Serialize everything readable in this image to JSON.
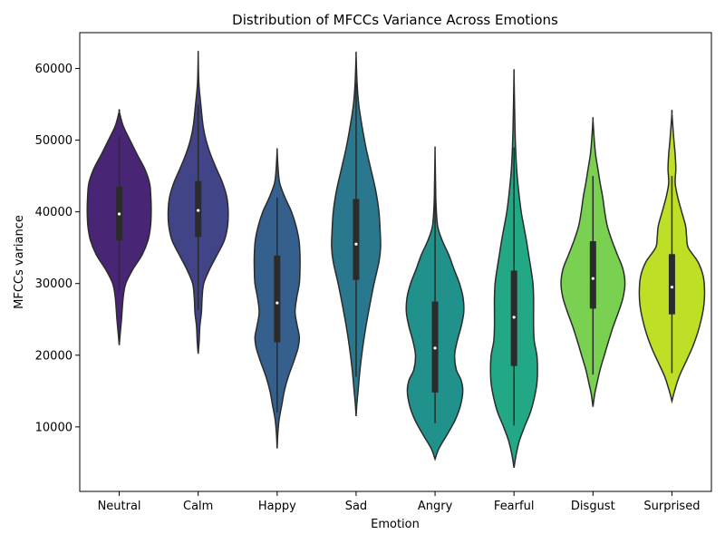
{
  "chart_data": {
    "type": "violin",
    "title": "Distribution of MFCCs Variance Across Emotions",
    "xlabel": "Emotion",
    "ylabel": "MFCCs variance",
    "ylim": [
      1000,
      65000
    ],
    "yticks": [
      10000,
      20000,
      30000,
      40000,
      50000,
      60000
    ],
    "ytick_labels": [
      "10000",
      "20000",
      "30000",
      "40000",
      "50000",
      "60000"
    ],
    "categories": [
      "Neutral",
      "Calm",
      "Happy",
      "Sad",
      "Angry",
      "Fearful",
      "Disgust",
      "Surprised"
    ],
    "colors": [
      "#482575",
      "#414487",
      "#35608d",
      "#2a788e",
      "#21918c",
      "#22a884",
      "#7ad151",
      "#bddf26"
    ],
    "grid": false,
    "legend": "none",
    "series": [
      {
        "category": "Neutral",
        "median": 39700,
        "q1": 36000,
        "q3": 43500,
        "whisker_low": 29000,
        "whisker_high": 50500,
        "profile": [
          [
            21400,
            0
          ],
          [
            23000,
            0.03
          ],
          [
            25000,
            0.07
          ],
          [
            28000,
            0.12
          ],
          [
            30000,
            0.2
          ],
          [
            32000,
            0.42
          ],
          [
            34000,
            0.7
          ],
          [
            36000,
            0.88
          ],
          [
            38000,
            0.96
          ],
          [
            40000,
            0.98
          ],
          [
            42000,
            0.97
          ],
          [
            44000,
            0.93
          ],
          [
            46000,
            0.78
          ],
          [
            48000,
            0.55
          ],
          [
            50000,
            0.33
          ],
          [
            52000,
            0.12
          ],
          [
            54000,
            0
          ]
        ]
      },
      {
        "category": "Calm",
        "median": 40200,
        "q1": 36500,
        "q3": 44300,
        "whisker_low": 26300,
        "whisker_high": 55000,
        "profile": [
          [
            20200,
            0
          ],
          [
            22000,
            0.03
          ],
          [
            24000,
            0.05
          ],
          [
            26000,
            0.1
          ],
          [
            28000,
            0.12
          ],
          [
            30000,
            0.17
          ],
          [
            32000,
            0.35
          ],
          [
            34000,
            0.58
          ],
          [
            36000,
            0.8
          ],
          [
            38000,
            0.9
          ],
          [
            40000,
            0.92
          ],
          [
            42000,
            0.88
          ],
          [
            44000,
            0.75
          ],
          [
            46000,
            0.56
          ],
          [
            48000,
            0.38
          ],
          [
            50000,
            0.24
          ],
          [
            52000,
            0.15
          ],
          [
            55000,
            0.08
          ],
          [
            58000,
            0.02
          ],
          [
            61900,
            0
          ]
        ]
      },
      {
        "category": "Happy",
        "median": 27300,
        "q1": 21800,
        "q3": 33900,
        "whisker_low": 12000,
        "whisker_high": 42000,
        "profile": [
          [
            7000,
            0
          ],
          [
            9000,
            0.02
          ],
          [
            11000,
            0.06
          ],
          [
            13000,
            0.14
          ],
          [
            15000,
            0.22
          ],
          [
            17000,
            0.34
          ],
          [
            19000,
            0.5
          ],
          [
            21000,
            0.64
          ],
          [
            22500,
            0.68
          ],
          [
            24000,
            0.62
          ],
          [
            26000,
            0.55
          ],
          [
            28000,
            0.6
          ],
          [
            30000,
            0.68
          ],
          [
            32000,
            0.7
          ],
          [
            34000,
            0.7
          ],
          [
            36000,
            0.67
          ],
          [
            38000,
            0.58
          ],
          [
            40000,
            0.44
          ],
          [
            42000,
            0.24
          ],
          [
            44000,
            0.08
          ],
          [
            46000,
            0.03
          ],
          [
            48500,
            0
          ]
        ]
      },
      {
        "category": "Sad",
        "median": 35500,
        "q1": 30500,
        "q3": 41800,
        "whisker_low": 17000,
        "whisker_high": 58000,
        "profile": [
          [
            11500,
            0
          ],
          [
            13000,
            0.02
          ],
          [
            15000,
            0.06
          ],
          [
            18000,
            0.12
          ],
          [
            21000,
            0.2
          ],
          [
            24000,
            0.3
          ],
          [
            27000,
            0.42
          ],
          [
            30000,
            0.55
          ],
          [
            33000,
            0.7
          ],
          [
            35000,
            0.75
          ],
          [
            37000,
            0.74
          ],
          [
            40000,
            0.7
          ],
          [
            43000,
            0.6
          ],
          [
            46000,
            0.45
          ],
          [
            49000,
            0.3
          ],
          [
            52000,
            0.18
          ],
          [
            55000,
            0.08
          ],
          [
            58000,
            0.03
          ],
          [
            61800,
            0
          ]
        ]
      },
      {
        "category": "Angry",
        "median": 21000,
        "q1": 14800,
        "q3": 27500,
        "whisker_low": 10500,
        "whisker_high": 44000,
        "profile": [
          [
            5500,
            0
          ],
          [
            7000,
            0.12
          ],
          [
            9000,
            0.38
          ],
          [
            11000,
            0.62
          ],
          [
            13000,
            0.78
          ],
          [
            15000,
            0.85
          ],
          [
            16500,
            0.8
          ],
          [
            18000,
            0.65
          ],
          [
            20000,
            0.6
          ],
          [
            22000,
            0.68
          ],
          [
            24000,
            0.8
          ],
          [
            26000,
            0.88
          ],
          [
            28000,
            0.86
          ],
          [
            30000,
            0.75
          ],
          [
            32000,
            0.58
          ],
          [
            34000,
            0.42
          ],
          [
            36000,
            0.22
          ],
          [
            38000,
            0.08
          ],
          [
            41000,
            0.03
          ],
          [
            44000,
            0.015
          ],
          [
            48500,
            0
          ]
        ]
      },
      {
        "category": "Fearful",
        "median": 25300,
        "q1": 18500,
        "q3": 31800,
        "whisker_low": 10200,
        "whisker_high": 49000,
        "profile": [
          [
            4300,
            0
          ],
          [
            6000,
            0.06
          ],
          [
            8000,
            0.16
          ],
          [
            10000,
            0.32
          ],
          [
            12000,
            0.5
          ],
          [
            14000,
            0.62
          ],
          [
            16000,
            0.7
          ],
          [
            18000,
            0.72
          ],
          [
            20000,
            0.7
          ],
          [
            22000,
            0.62
          ],
          [
            24000,
            0.6
          ],
          [
            26000,
            0.6
          ],
          [
            28000,
            0.6
          ],
          [
            30000,
            0.58
          ],
          [
            32000,
            0.52
          ],
          [
            34000,
            0.45
          ],
          [
            36000,
            0.38
          ],
          [
            38000,
            0.3
          ],
          [
            40000,
            0.22
          ],
          [
            43000,
            0.14
          ],
          [
            46000,
            0.08
          ],
          [
            50000,
            0.04
          ],
          [
            54000,
            0.02
          ],
          [
            59200,
            0
          ]
        ]
      },
      {
        "category": "Disgust",
        "median": 30700,
        "q1": 26500,
        "q3": 35900,
        "whisker_low": 17300,
        "whisker_high": 45000,
        "profile": [
          [
            12800,
            0
          ],
          [
            14500,
            0.05
          ],
          [
            16000,
            0.12
          ],
          [
            18000,
            0.22
          ],
          [
            20000,
            0.35
          ],
          [
            22000,
            0.48
          ],
          [
            24000,
            0.62
          ],
          [
            26000,
            0.78
          ],
          [
            28000,
            0.92
          ],
          [
            30000,
            0.98
          ],
          [
            32000,
            0.92
          ],
          [
            34000,
            0.75
          ],
          [
            36000,
            0.58
          ],
          [
            38000,
            0.44
          ],
          [
            40000,
            0.36
          ],
          [
            42000,
            0.3
          ],
          [
            44000,
            0.22
          ],
          [
            46000,
            0.15
          ],
          [
            48000,
            0.08
          ],
          [
            50000,
            0.04
          ],
          [
            52800,
            0
          ]
        ]
      },
      {
        "category": "Surprised",
        "median": 29500,
        "q1": 25700,
        "q3": 34100,
        "whisker_low": 17500,
        "whisker_high": 45000,
        "profile": [
          [
            13600,
            0
          ],
          [
            15000,
            0.08
          ],
          [
            17000,
            0.22
          ],
          [
            19000,
            0.42
          ],
          [
            21000,
            0.62
          ],
          [
            23000,
            0.78
          ],
          [
            25000,
            0.9
          ],
          [
            27000,
            0.98
          ],
          [
            29000,
            1.0
          ],
          [
            31000,
            0.96
          ],
          [
            33000,
            0.8
          ],
          [
            35000,
            0.5
          ],
          [
            36500,
            0.45
          ],
          [
            38000,
            0.42
          ],
          [
            40000,
            0.3
          ],
          [
            42000,
            0.18
          ],
          [
            44000,
            0.1
          ],
          [
            46000,
            0.12
          ],
          [
            48000,
            0.1
          ],
          [
            50000,
            0.06
          ],
          [
            53700,
            0
          ]
        ]
      }
    ]
  }
}
